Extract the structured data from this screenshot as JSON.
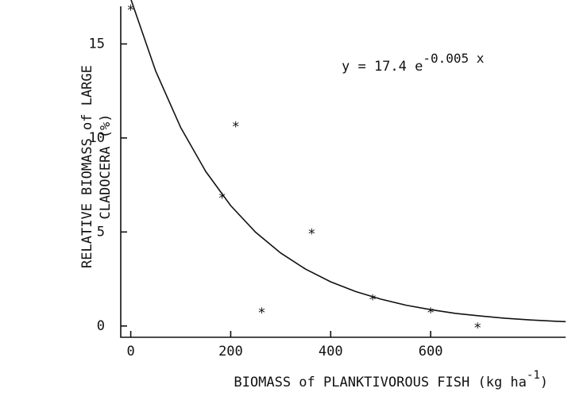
{
  "chart_data": {
    "type": "scatter",
    "x_label": {
      "text": "BIOMASS of PLANKTIVOROUS FISH (kg ha",
      "superscript": "-1",
      "suffix": ")"
    },
    "y_label": [
      "RELATIVE BIOMASS of LARGE",
      "CLADOCERA (%)"
    ],
    "annotation": {
      "text": "y = 17.4 e",
      "superscript": "-0.005 x"
    },
    "x": [
      0,
      183,
      210,
      262,
      362,
      484,
      600,
      694
    ],
    "values": [
      17.0,
      7.0,
      10.8,
      0.9,
      5.1,
      1.6,
      0.9,
      0.1
    ],
    "color": "#111111",
    "fit": {
      "x": [
        0,
        50,
        100,
        150,
        200,
        250,
        300,
        350,
        400,
        450,
        500,
        550,
        600,
        650,
        700,
        750,
        800,
        850,
        870
      ],
      "values": [
        17.4,
        13.55,
        10.55,
        8.22,
        6.4,
        4.98,
        3.88,
        3.02,
        2.35,
        1.83,
        1.43,
        1.11,
        0.87,
        0.67,
        0.53,
        0.41,
        0.32,
        0.25,
        0.23
      ]
    },
    "xlim": [
      -20,
      870
    ],
    "ylim": [
      -0.6,
      17
    ],
    "xticks": [
      0,
      200,
      400,
      600
    ],
    "yticks": [
      0,
      5,
      10,
      15
    ],
    "grid": false
  }
}
